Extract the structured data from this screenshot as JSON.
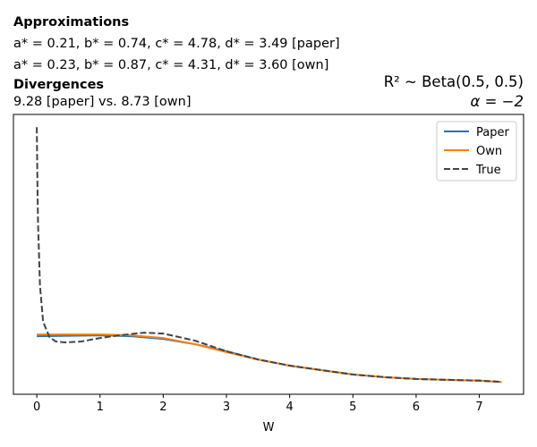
{
  "header": {
    "approx_title": "Approximations",
    "approx_paper": "a* = 0.21, b* = 0.74, c* = 4.78, d* = 3.49 [paper]",
    "approx_own": "a* = 0.23, b* = 0.87, c* = 4.31, d* = 3.60 [own]",
    "div_title": "Divergences",
    "div_values": "9.28 [paper] vs. 8.73 [own]",
    "prior": "R² ~  Beta(0.5, 0.5)",
    "alpha": "α = −2"
  },
  "chart_data": {
    "type": "line",
    "title": "",
    "xlabel": "W",
    "ylabel": "",
    "xlim": [
      -0.37,
      7.7
    ],
    "ylim": [
      0,
      0.95
    ],
    "xticks": [
      "0",
      "1",
      "2",
      "3",
      "4",
      "5",
      "6",
      "7"
    ],
    "legend": {
      "placement": "top-right",
      "entries": [
        "Paper",
        "Own",
        "True"
      ]
    },
    "series": [
      {
        "name": "Paper",
        "color": "#1f77b4",
        "dash": false,
        "x": [
          0,
          1,
          1.5,
          2,
          2.5,
          3,
          3.5,
          4,
          4.5,
          5,
          5.5,
          6,
          6.5,
          7,
          7.35
        ],
        "y": [
          0.197,
          0.2,
          0.197,
          0.188,
          0.17,
          0.146,
          0.118,
          0.097,
          0.082,
          0.067,
          0.058,
          0.052,
          0.049,
          0.046,
          0.042
        ]
      },
      {
        "name": "Own",
        "color": "#ff7f0e",
        "dash": false,
        "x": [
          0,
          1,
          1.5,
          2,
          2.5,
          3,
          3.5,
          4,
          4.5,
          5,
          5.5,
          6,
          6.5,
          7,
          7.35
        ],
        "y": [
          0.203,
          0.203,
          0.2,
          0.191,
          0.17,
          0.143,
          0.118,
          0.097,
          0.082,
          0.067,
          0.058,
          0.052,
          0.049,
          0.046,
          0.042
        ]
      },
      {
        "name": "True",
        "color": "#444444",
        "dash": true,
        "x": [
          0,
          0.01,
          0.02,
          0.05,
          0.1,
          0.2,
          0.3,
          0.45,
          0.7,
          1,
          1.3,
          1.7,
          2,
          2.5,
          3,
          3.5,
          4,
          4.5,
          5,
          5.5,
          6,
          6.5,
          7,
          7.35
        ],
        "y": [
          0.907,
          0.72,
          0.58,
          0.367,
          0.246,
          0.194,
          0.179,
          0.176,
          0.179,
          0.191,
          0.2,
          0.209,
          0.206,
          0.182,
          0.146,
          0.118,
          0.097,
          0.082,
          0.067,
          0.058,
          0.052,
          0.049,
          0.046,
          0.042
        ]
      }
    ]
  }
}
